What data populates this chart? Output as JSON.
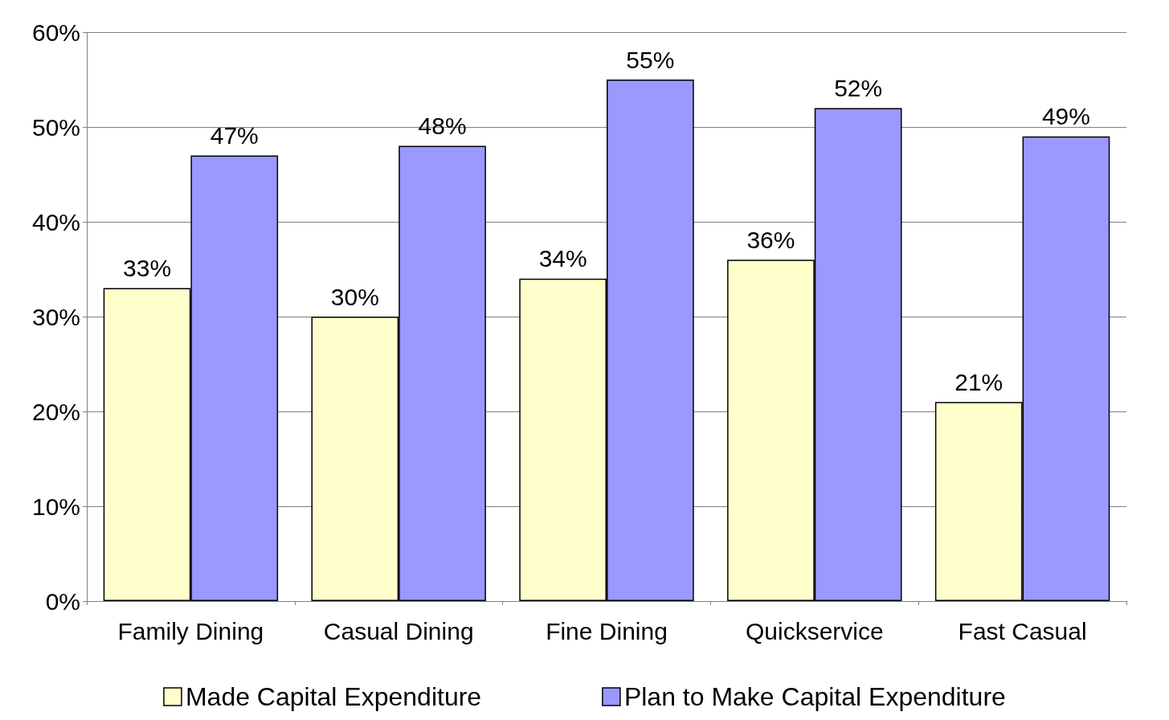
{
  "chart_data": {
    "type": "bar",
    "categories": [
      "Family Dining",
      "Casual Dining",
      "Fine Dining",
      "Quickservice",
      "Fast Casual"
    ],
    "series": [
      {
        "name": "Made Capital Expenditure",
        "color": "#ffffcc",
        "values": [
          33,
          30,
          34,
          36,
          21
        ],
        "value_labels": [
          "33%",
          "30%",
          "34%",
          "36%",
          "21%"
        ]
      },
      {
        "name": "Plan to Make Capital Expenditure",
        "color": "#9999ff",
        "values": [
          47,
          48,
          55,
          52,
          49
        ],
        "value_labels": [
          "47%",
          "48%",
          "55%",
          "52%",
          "49%"
        ]
      }
    ],
    "ylim": [
      0,
      60
    ],
    "yticks": [
      {
        "value": 0,
        "label": "0%"
      },
      {
        "value": 10,
        "label": "10%"
      },
      {
        "value": 20,
        "label": "20%"
      },
      {
        "value": 30,
        "label": "30%"
      },
      {
        "value": 40,
        "label": "40%"
      },
      {
        "value": 50,
        "label": "50%"
      },
      {
        "value": 60,
        "label": "60%"
      }
    ],
    "grid": "y",
    "legend": "bottom"
  }
}
